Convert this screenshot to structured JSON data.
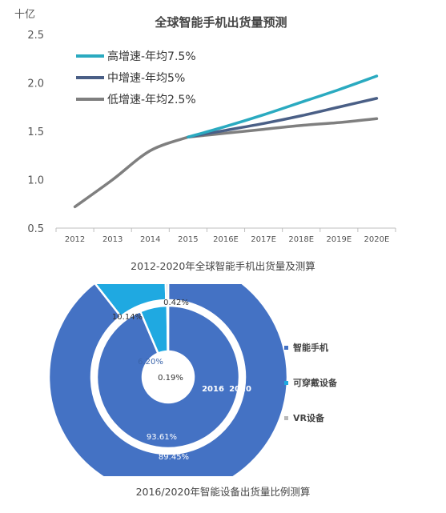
{
  "chart_data": [
    {
      "type": "line",
      "title": "全球智能手机出货量预测",
      "unit_label": "十亿",
      "caption": "2012-2020年全球智能手机出货量及测算",
      "categories": [
        "2012",
        "2013",
        "2014",
        "2015",
        "2016E",
        "2017E",
        "2018E",
        "2019E",
        "2020E"
      ],
      "yticks": [
        "0.5",
        "1.0",
        "1.5",
        "2.0",
        "2.5"
      ],
      "ylim": [
        0.5,
        2.5
      ],
      "grid": false,
      "legend_position": "top-left",
      "history": {
        "values": [
          0.72,
          1.0,
          1.3,
          1.44
        ]
      },
      "series": [
        {
          "name": "高增速-年均7.5%",
          "color": "#2aaac0",
          "values": [
            null,
            null,
            null,
            1.44,
            1.55,
            1.67,
            1.8,
            1.93,
            2.07
          ]
        },
        {
          "name": "中增速-年均5%",
          "color": "#4a5f86",
          "values": [
            null,
            null,
            null,
            1.44,
            1.51,
            1.58,
            1.66,
            1.75,
            1.84
          ]
        },
        {
          "name": "低增速-年均2.5%",
          "color": "#7f7f7f",
          "values": [
            null,
            null,
            null,
            1.44,
            1.48,
            1.52,
            1.56,
            1.59,
            1.63
          ]
        }
      ],
      "history_color": "#7f7f7f"
    },
    {
      "type": "pie",
      "caption": "2016/2020年智能设备出货量比例测算",
      "rings": [
        {
          "label": "2016",
          "values": [
            93.61,
            6.2,
            0.19
          ],
          "value_labels": [
            "93.61%",
            "6.20%",
            "0.19%"
          ]
        },
        {
          "label": "2020",
          "values": [
            89.45,
            10.14,
            0.42
          ],
          "value_labels": [
            "89.45%",
            "10.14%",
            "0.42%"
          ]
        }
      ],
      "legend": [
        {
          "name": "智能手机",
          "color": "#4472c4"
        },
        {
          "name": "可穿戴设备",
          "color": "#1fa9e1"
        },
        {
          "name": "VR设备",
          "color": "#b8b8b8"
        }
      ],
      "legend_position": "right"
    }
  ]
}
